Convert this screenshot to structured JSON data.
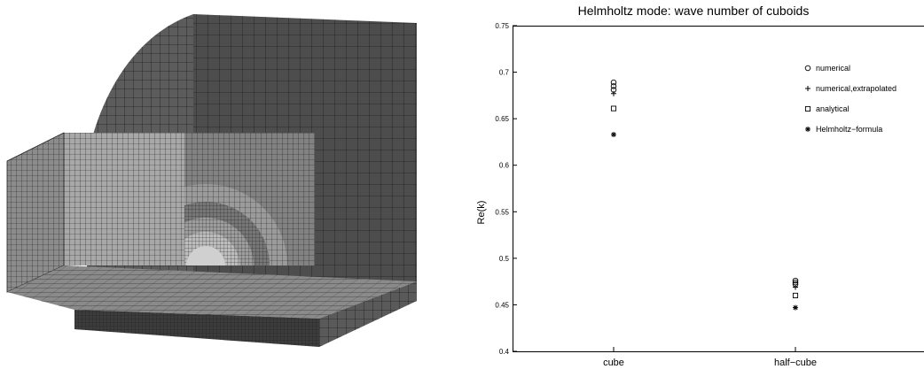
{
  "mesh_figure": {
    "description_icon": "fem-mesh-icon",
    "colors": {
      "mesh_dark": "#4a4a4a",
      "mesh_mid": "#6e6e6e",
      "mesh_light": "#9a9a9a",
      "mesh_top": "#8a8a8a",
      "mesh_lines": "#1e1e1e"
    }
  },
  "chart_data": {
    "type": "scatter",
    "title": "Helmholtz mode: wave number of cuboids",
    "xlabel": "",
    "ylabel": "Re(k)",
    "categories": [
      "cube",
      "half−cube"
    ],
    "ylim": [
      0.4,
      0.75
    ],
    "yticks": [
      0.4,
      0.45,
      0.5,
      0.55,
      0.6,
      0.65,
      0.7,
      0.75
    ],
    "ytick_labels": [
      "0.4",
      "0.45",
      "0.5",
      "0.55",
      "0.6",
      "0.65",
      "0.7",
      "0.75"
    ],
    "grid": false,
    "legend_position": "top-right",
    "series": [
      {
        "name": "numerical",
        "marker": "circle",
        "values": [
          [
            0.689,
            0.685,
            0.681
          ],
          [
            0.476,
            0.474,
            0.472
          ]
        ]
      },
      {
        "name": "numerical,extrapolated",
        "marker": "plus",
        "values": [
          [
            0.677
          ],
          [
            0.469
          ]
        ]
      },
      {
        "name": "analytical",
        "marker": "square",
        "values": [
          [
            0.661
          ],
          [
            0.46
          ]
        ]
      },
      {
        "name": "Helmholtz−formula",
        "marker": "star",
        "values": [
          [
            0.633
          ],
          [
            0.447
          ]
        ]
      }
    ]
  }
}
